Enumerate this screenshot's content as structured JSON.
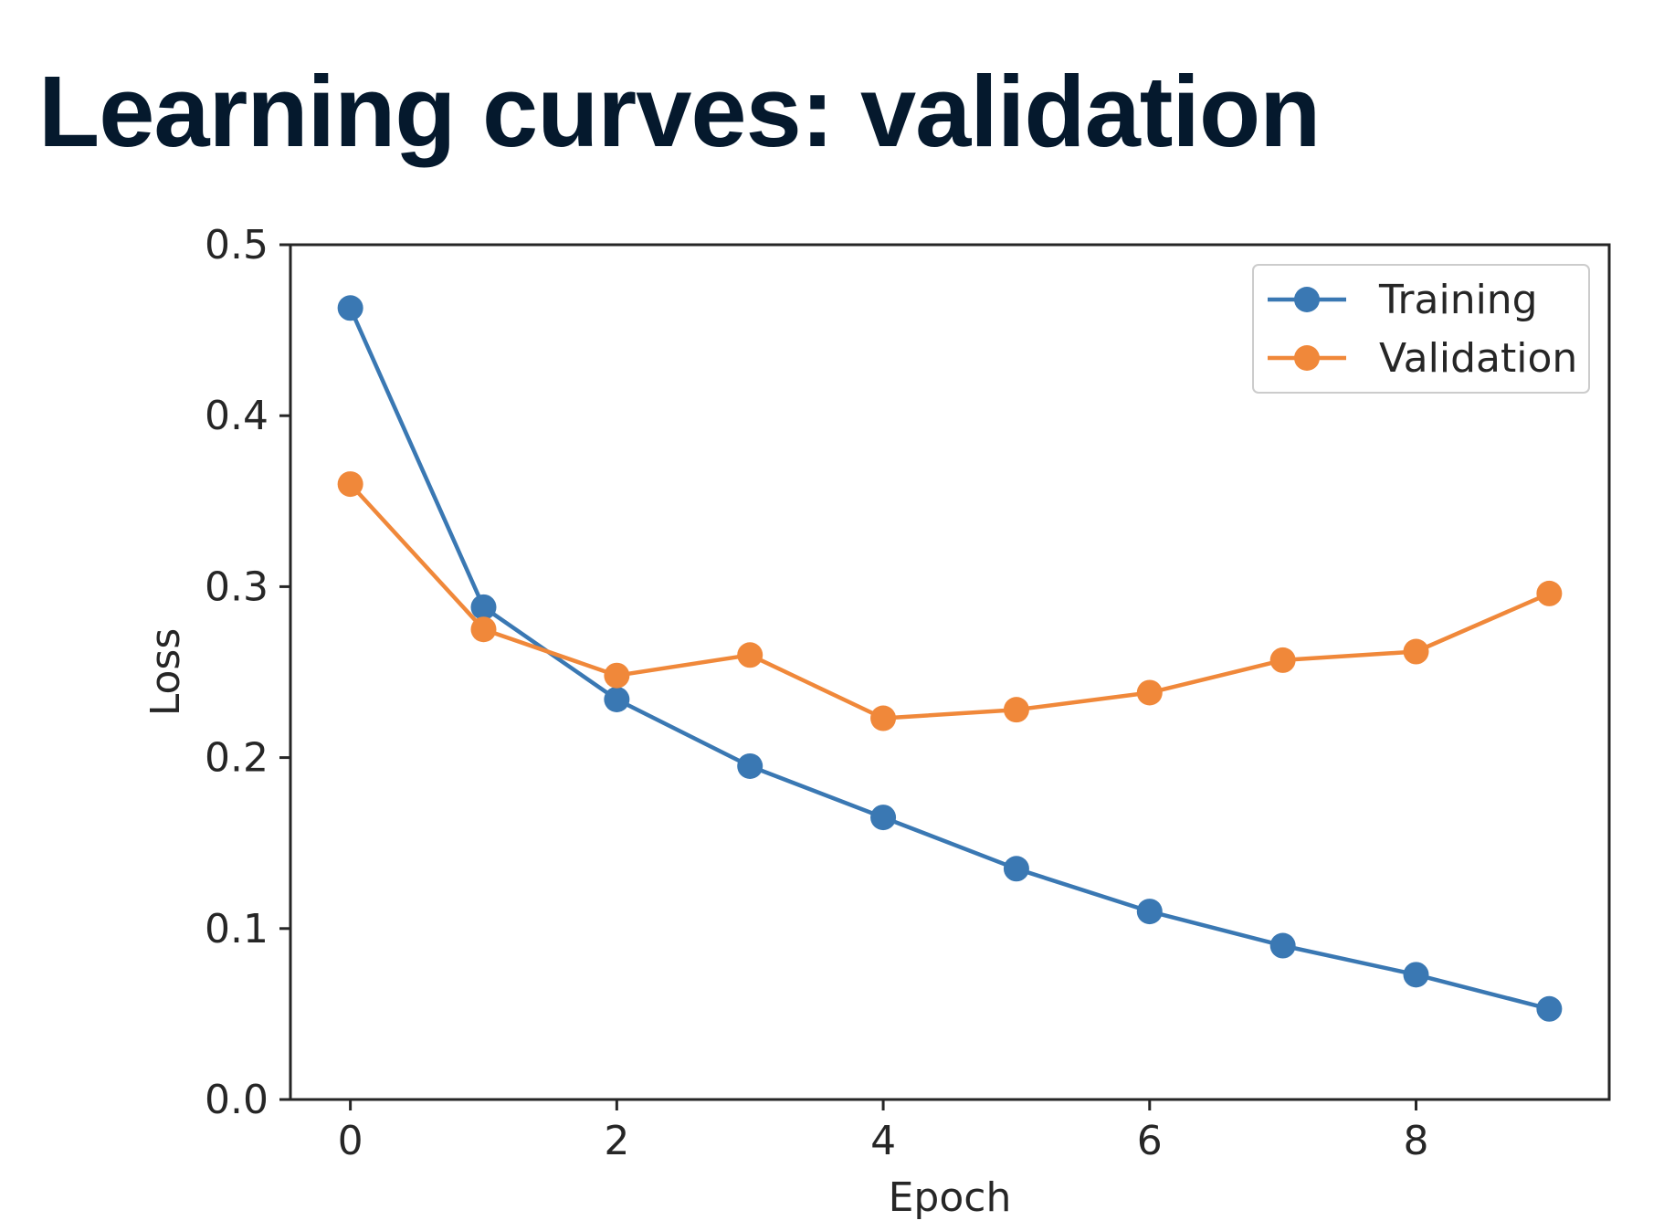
{
  "slide": {
    "title": "Learning curves: validation"
  },
  "chart_data": {
    "type": "line",
    "xlabel": "Epoch",
    "ylabel": "Loss",
    "xlim": [
      -0.45,
      9.45
    ],
    "ylim": [
      0.0,
      0.5
    ],
    "x": [
      0,
      1,
      2,
      3,
      4,
      5,
      6,
      7,
      8,
      9
    ],
    "xticks": [
      0,
      2,
      4,
      6,
      8
    ],
    "xtick_labels": [
      "0",
      "2",
      "4",
      "6",
      "8"
    ],
    "yticks": [
      0.0,
      0.1,
      0.2,
      0.3,
      0.4,
      0.5
    ],
    "ytick_labels": [
      "0.0",
      "0.1",
      "0.2",
      "0.3",
      "0.4",
      "0.5"
    ],
    "grid": false,
    "legend_position": "upper right",
    "markers": "circle",
    "series": [
      {
        "name": "Training",
        "color": "#3a78b3",
        "values": [
          0.463,
          0.288,
          0.234,
          0.195,
          0.165,
          0.135,
          0.11,
          0.09,
          0.073,
          0.053
        ]
      },
      {
        "name": "Validation",
        "color": "#f0883a",
        "values": [
          0.36,
          0.275,
          0.248,
          0.26,
          0.223,
          0.228,
          0.238,
          0.257,
          0.262,
          0.296
        ]
      }
    ]
  }
}
